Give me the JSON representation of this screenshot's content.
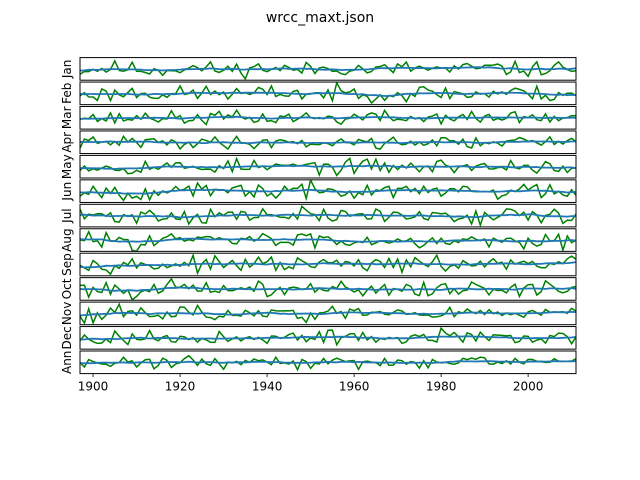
{
  "title": "wrcc_maxt.json",
  "chart_data": {
    "type": "line",
    "title": "wrcc_maxt.json",
    "xlim": [
      1897,
      2011
    ],
    "x_ticks": [
      1900,
      1920,
      1940,
      1960,
      1980,
      2000
    ],
    "x_tick_labels": [
      "1900",
      "1920",
      "1940",
      "1960",
      "1980",
      "2000"
    ],
    "x_start": 1895,
    "x_end": 2011,
    "grid": false,
    "legend": "none",
    "colors": {
      "raw": "#008000",
      "smooth": "#1f77b4",
      "frame": "#000000"
    },
    "panels": [
      {
        "label": "Jan",
        "seed": 11,
        "amp": 0.34,
        "trend": 0.03
      },
      {
        "label": "Feb",
        "seed": 23,
        "amp": 0.36,
        "trend": 0.02
      },
      {
        "label": "Mar",
        "seed": 37,
        "amp": 0.3,
        "trend": 0.02
      },
      {
        "label": "Apr",
        "seed": 41,
        "amp": 0.28,
        "trend": 0.04
      },
      {
        "label": "May",
        "seed": 53,
        "amp": 0.33,
        "trend": 0.03
      },
      {
        "label": "Jun",
        "seed": 67,
        "amp": 0.36,
        "trend": 0.05
      },
      {
        "label": "Jul",
        "seed": 71,
        "amp": 0.36,
        "trend": 0.04
      },
      {
        "label": "Aug",
        "seed": 83,
        "amp": 0.35,
        "trend": 0.03
      },
      {
        "label": "Sep",
        "seed": 97,
        "amp": 0.33,
        "trend": 0.02
      },
      {
        "label": "Oct",
        "seed": 101,
        "amp": 0.36,
        "trend": 0.03
      },
      {
        "label": "Nov",
        "seed": 113,
        "amp": 0.33,
        "trend": 0.02
      },
      {
        "label": "Dec",
        "seed": 127,
        "amp": 0.34,
        "trend": 0.03
      },
      {
        "label": "Ann",
        "seed": 131,
        "amp": 0.26,
        "trend": 0.04
      }
    ]
  }
}
